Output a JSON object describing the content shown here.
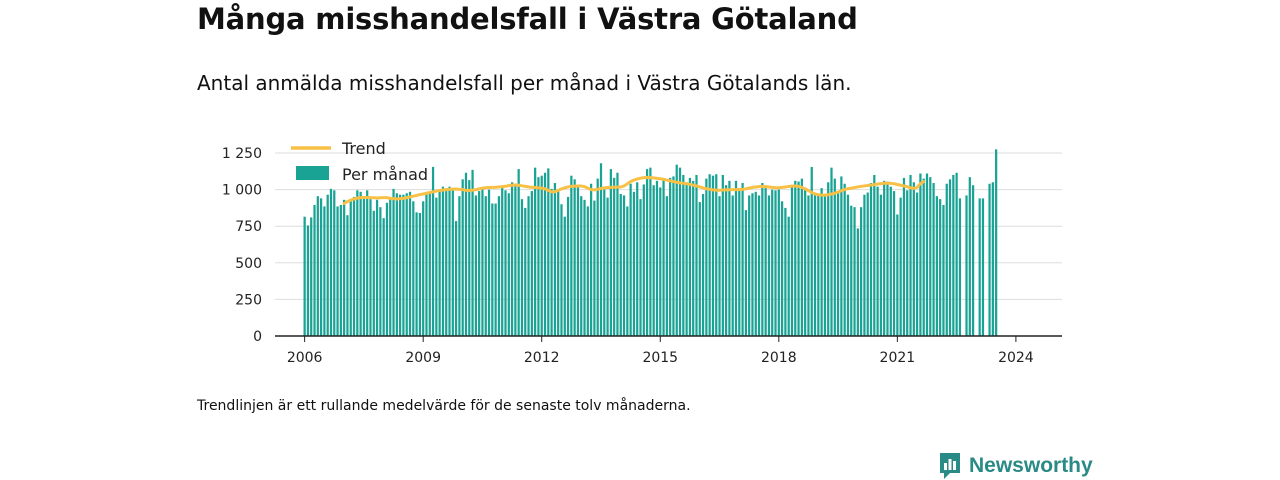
{
  "title": "Många misshandelsfall i Västra Götaland",
  "subtitle": "Antal anmälda misshandelsfall per månad i Västra Götalands län.",
  "footnote": "Trendlinjen är ett rullande medelvärde för de senaste tolv månaderna.",
  "brand": {
    "name": "Newsworthy",
    "icon": "newsworthy-logo-icon"
  },
  "colors": {
    "bars": "#19a394",
    "trend": "#f9c046",
    "grid": "#dddddd",
    "axis": "#222222",
    "brand": "#2a8a86"
  },
  "chart_data": {
    "type": "bar",
    "x_ticks": [
      "2006",
      "2009",
      "2012",
      "2015",
      "2018",
      "2021",
      "2024"
    ],
    "y_ticks": [
      "0",
      "250",
      "500",
      "750",
      "1 000",
      "1 250"
    ],
    "ylim": [
      0,
      1250
    ],
    "xlim": [
      "2005-04",
      "2025-03"
    ],
    "grid": true,
    "legend_position": "top-left",
    "series": [
      {
        "name": "Per månad",
        "kind": "bar",
        "start": "2006-01",
        "values": [
          815,
          755,
          810,
          895,
          955,
          940,
          885,
          965,
          1005,
          995,
          885,
          895,
          930,
          825,
          925,
          950,
          995,
          985,
          955,
          995,
          935,
          855,
          930,
          880,
          805,
          910,
          950,
          1005,
          975,
          965,
          965,
          975,
          985,
          920,
          845,
          840,
          920,
          980,
          975,
          1155,
          945,
          1000,
          1020,
          990,
          1020,
          1005,
          785,
          955,
          1070,
          1115,
          1065,
          1135,
          960,
          990,
          1005,
          955,
          1000,
          905,
          905,
          955,
          1025,
          995,
          975,
          1050,
          1025,
          1140,
          935,
          875,
          955,
          990,
          1150,
          1085,
          1095,
          1115,
          1145,
          1005,
          1045,
          1000,
          900,
          815,
          950,
          1095,
          1070,
          1020,
          955,
          930,
          885,
          1040,
          925,
          1075,
          1180,
          1000,
          945,
          1140,
          1080,
          1115,
          970,
          960,
          885,
          1040,
          985,
          1050,
          935,
          1035,
          1140,
          1150,
          1030,
          1060,
          1015,
          1065,
          955,
          1080,
          1090,
          1170,
          1150,
          1100,
          1050,
          1080,
          1060,
          1100,
          915,
          970,
          1075,
          1105,
          1095,
          1105,
          955,
          1100,
          1030,
          1060,
          960,
          1060,
          1010,
          1045,
          860,
          960,
          975,
          985,
          960,
          1045,
          1020,
          960,
          1000,
          995,
          1000,
          920,
          875,
          815,
          1030,
          1060,
          1055,
          1075,
          1000,
          960,
          1155,
          970,
          965,
          1010,
          960,
          1050,
          1150,
          1075,
          975,
          1090,
          1040,
          965,
          890,
          880,
          735,
          880,
          965,
          980,
          1045,
          1100,
          1020,
          965,
          1060,
          1055,
          1020,
          990,
          830,
          945,
          1080,
          995,
          1100,
          1050,
          980,
          1110,
          1075,
          1110,
          1085,
          1045,
          955,
          935,
          895,
          1040,
          1070,
          1100,
          1115,
          940,
          0,
          960,
          1085,
          1030,
          0,
          940,
          940,
          0,
          1040,
          1050,
          1275
        ]
      },
      {
        "name": "Trend",
        "kind": "line",
        "start": "2007-01",
        "values": [
          905,
          918,
          928,
          936,
          942,
          945,
          946,
          946,
          945,
          944,
          943,
          944,
          945,
          945,
          940,
          938,
          936,
          938,
          940,
          945,
          950,
          955,
          960,
          966,
          970,
          975,
          980,
          985,
          990,
          994,
          997,
          1000,
          1002,
          1003,
          1003,
          1002,
          1000,
          995,
          994,
          996,
          1000,
          1005,
          1010,
          1013,
          1014,
          1015,
          1016,
          1018,
          1020,
          1023,
          1027,
          1030,
          1032,
          1030,
          1026,
          1022,
          1018,
          1016,
          1014,
          1012,
          1010,
          1005,
          995,
          985,
          985,
          995,
          1005,
          1012,
          1018,
          1022,
          1024,
          1025,
          1025,
          1020,
          1010,
          1000,
          998,
          1002,
          1008,
          1012,
          1014,
          1015,
          1016,
          1017,
          1018,
          1025,
          1040,
          1055,
          1065,
          1072,
          1078,
          1082,
          1083,
          1082,
          1080,
          1077,
          1074,
          1070,
          1065,
          1060,
          1055,
          1050,
          1046,
          1043,
          1040,
          1036,
          1030,
          1025,
          1018,
          1012,
          1006,
          1002,
          998,
          996,
          996,
          997,
          998,
          999,
          1000,
          1000,
          1000,
          1002,
          1005,
          1010,
          1015,
          1018,
          1020,
          1020,
          1020,
          1018,
          1015,
          1013,
          1013,
          1015,
          1018,
          1021,
          1024,
          1025,
          1022,
          1015,
          1005,
          993,
          980,
          970,
          965,
          962,
          962,
          965,
          970,
          975,
          983,
          992,
          1000,
          1006,
          1010,
          1014,
          1018,
          1022,
          1025,
          1028,
          1031,
          1034,
          1038,
          1041,
          1043,
          1044,
          1043,
          1040,
          1035,
          1030,
          1025,
          1020,
          1012,
          1008,
          1015,
          1040,
          1055
        ]
      }
    ]
  }
}
